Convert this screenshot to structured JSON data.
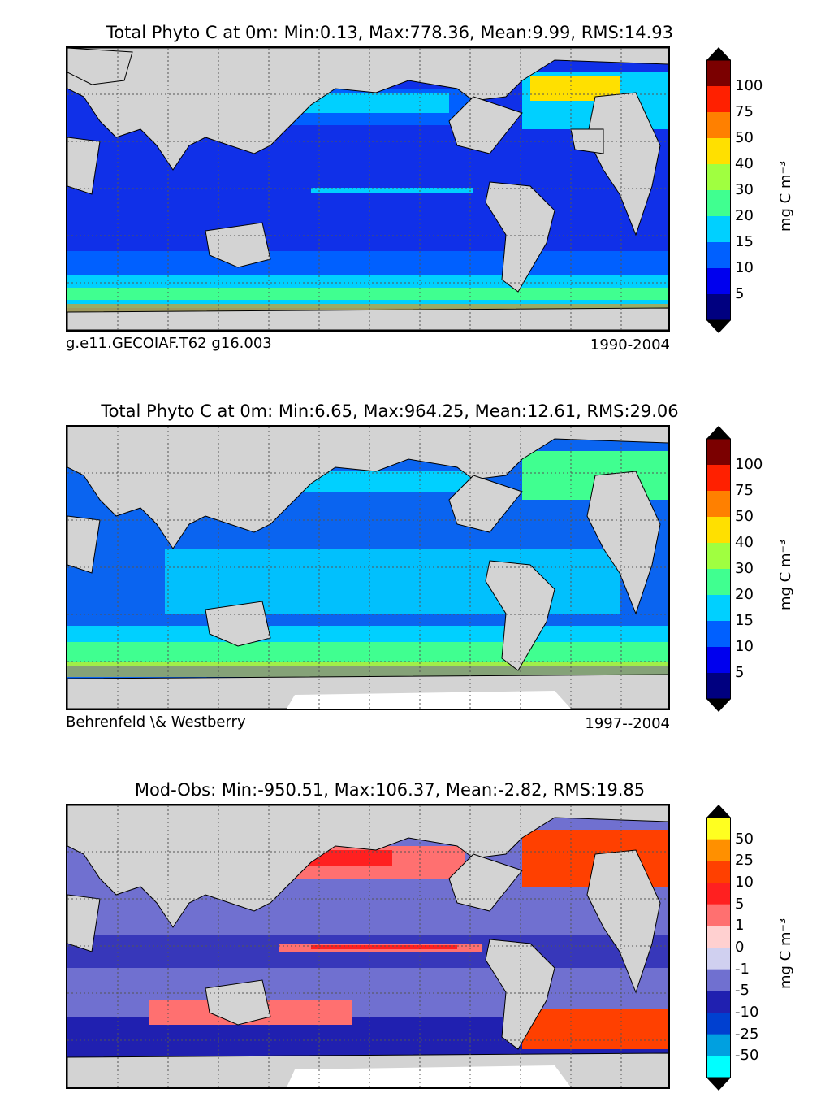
{
  "panels": [
    {
      "title": "Total Phyto C at 0m: Min:0.13, Max:778.36, Mean:9.99, RMS:14.93",
      "left_note": "g.e11.GECOIAF.T62 g16.003",
      "right_note": "1990-2004",
      "colorbar": {
        "ticks": [
          "100",
          "75",
          "50",
          "40",
          "30",
          "20",
          "15",
          "10",
          "5"
        ],
        "colors": [
          "#7b0000",
          "#ff2000",
          "#ff8000",
          "#ffe000",
          "#a0ff40",
          "#40ff90",
          "#00d0ff",
          "#0060ff",
          "#0000ee",
          "#000080"
        ],
        "label": "mg C m⁻³"
      }
    },
    {
      "title": "Total Phyto C at 0m: Min:6.65, Max:964.25, Mean:12.61, RMS:29.06",
      "left_note": "Behrenfeld \\& Westberry",
      "right_note": "1997--2004",
      "colorbar": {
        "ticks": [
          "100",
          "75",
          "50",
          "40",
          "30",
          "20",
          "15",
          "10",
          "5"
        ],
        "colors": [
          "#7b0000",
          "#ff2000",
          "#ff8000",
          "#ffe000",
          "#a0ff40",
          "#40ff90",
          "#00d0ff",
          "#0060ff",
          "#0000ee",
          "#000080"
        ],
        "label": "mg C m⁻³"
      }
    },
    {
      "title": "Mod-Obs: Min:-950.51, Max:106.37, Mean:-2.82, RMS:19.85",
      "left_note": "",
      "right_note": "",
      "colorbar": {
        "ticks": [
          "50",
          "25",
          "10",
          "5",
          "1",
          "0",
          "-1",
          "-5",
          "-10",
          "-25",
          "-50"
        ],
        "colors": [
          "#ffff20",
          "#ff9000",
          "#ff4000",
          "#ff2020",
          "#ff7070",
          "#ffd0d0",
          "#d0d0f0",
          "#7070d0",
          "#2020b0",
          "#0040d0",
          "#00a0e0",
          "#00ffff"
        ],
        "label": "mg C m⁻³"
      }
    }
  ],
  "colors": {
    "land": "#d3d3d3",
    "missing": "#ffffff",
    "ocean_model": "#1f3fe0",
    "ocean_obs": "#0a64f0",
    "ocean_diff": "#7070d0"
  }
}
